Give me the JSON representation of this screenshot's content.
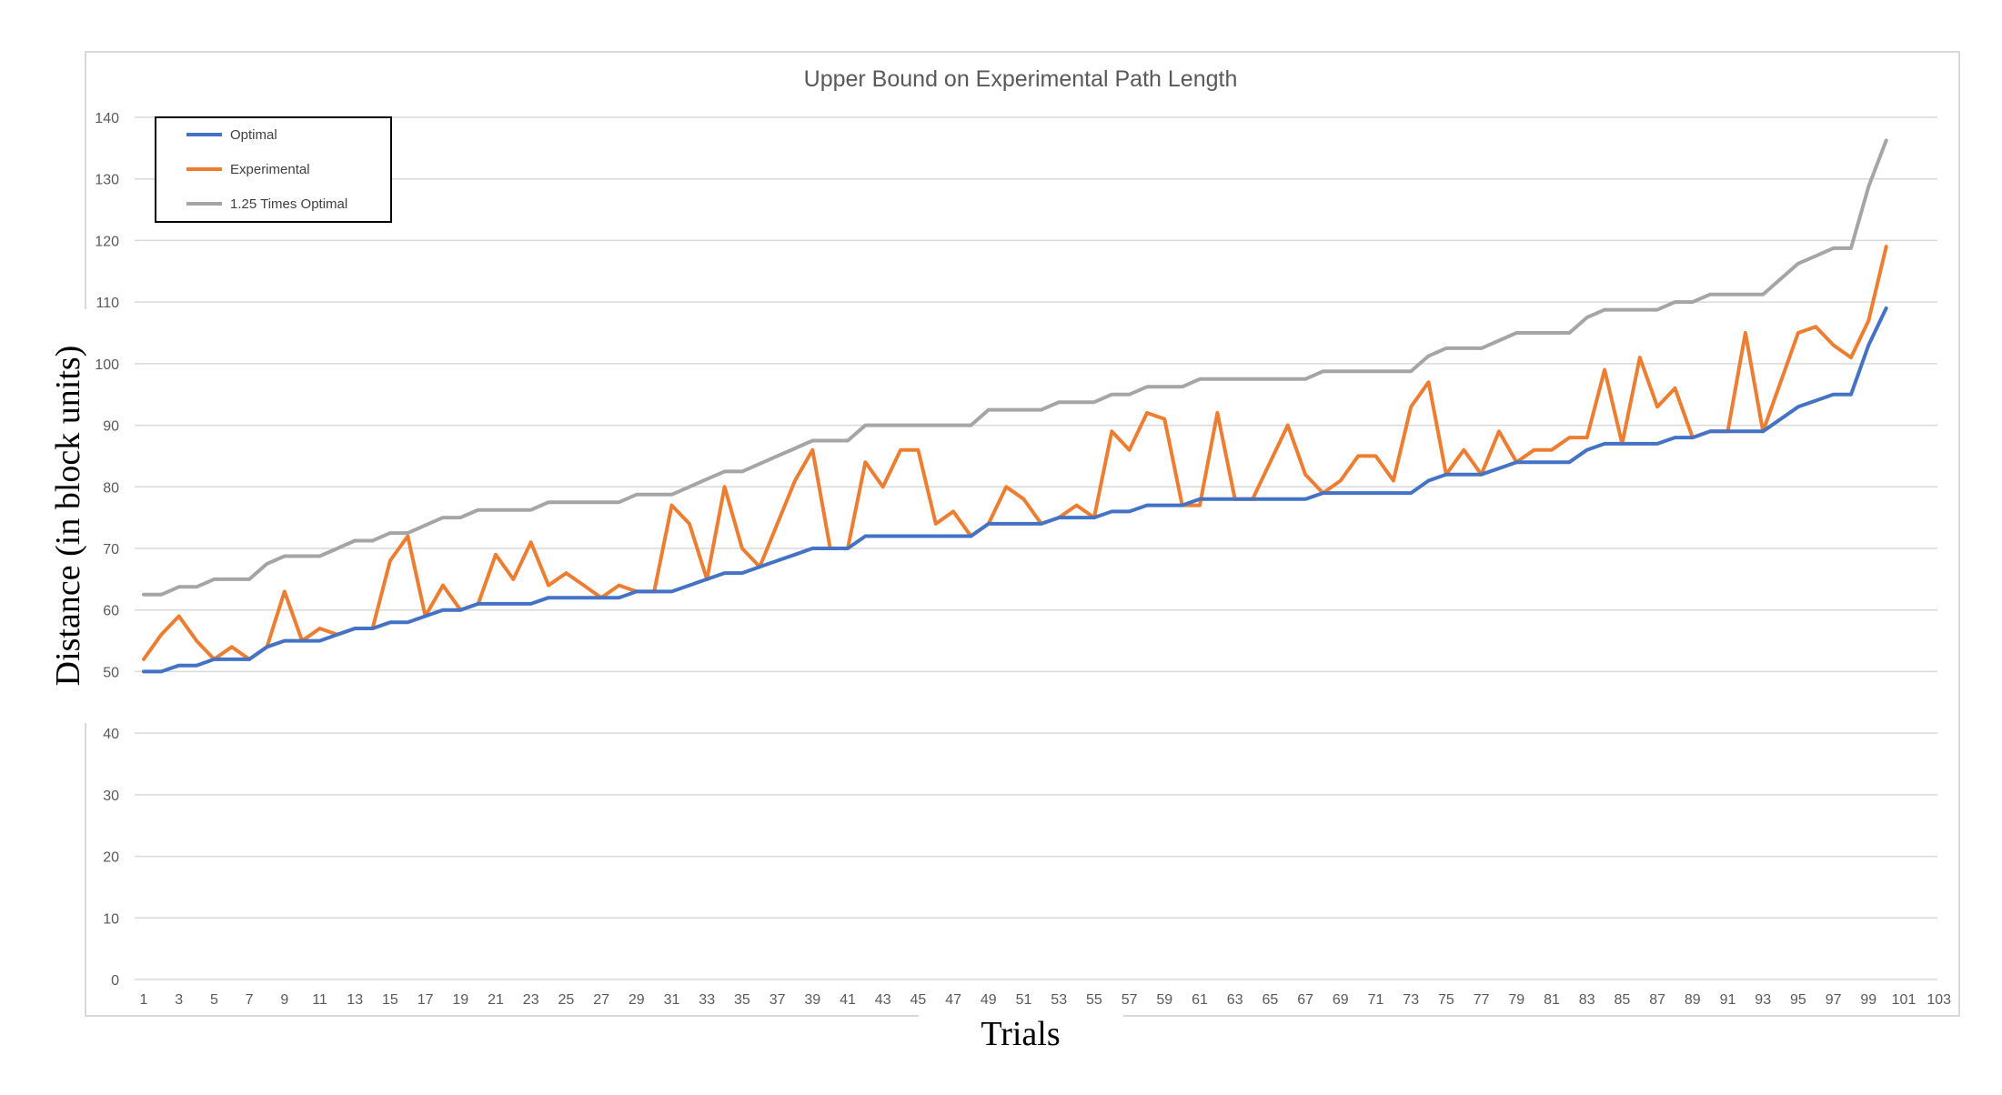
{
  "chart_data": {
    "type": "line",
    "title": "Upper Bound on Experimental Path Length",
    "xlabel": "Trials",
    "ylabel": "Distance (in block units)",
    "ylim": [
      0,
      140
    ],
    "yticks": [
      0,
      10,
      20,
      30,
      40,
      50,
      60,
      70,
      80,
      90,
      100,
      110,
      120,
      130,
      140
    ],
    "xlim": [
      1,
      103
    ],
    "xticks": [
      1,
      3,
      5,
      7,
      9,
      11,
      13,
      15,
      17,
      19,
      21,
      23,
      25,
      27,
      29,
      31,
      33,
      35,
      37,
      39,
      41,
      43,
      45,
      47,
      49,
      51,
      53,
      55,
      57,
      59,
      61,
      63,
      65,
      67,
      69,
      71,
      73,
      75,
      77,
      79,
      81,
      83,
      85,
      87,
      89,
      91,
      93,
      95,
      97,
      99,
      101,
      103
    ],
    "grid": "horizontal",
    "legend_position": "top-left",
    "x": [
      1,
      2,
      3,
      4,
      5,
      6,
      7,
      8,
      9,
      10,
      11,
      12,
      13,
      14,
      15,
      16,
      17,
      18,
      19,
      20,
      21,
      22,
      23,
      24,
      25,
      26,
      27,
      28,
      29,
      30,
      31,
      32,
      33,
      34,
      35,
      36,
      37,
      38,
      39,
      40,
      41,
      42,
      43,
      44,
      45,
      46,
      47,
      48,
      49,
      50,
      51,
      52,
      53,
      54,
      55,
      56,
      57,
      58,
      59,
      60,
      61,
      62,
      63,
      64,
      65,
      66,
      67,
      68,
      69,
      70,
      71,
      72,
      73,
      74,
      75,
      76,
      77,
      78,
      79,
      80,
      81,
      82,
      83,
      84,
      85,
      86,
      87,
      88,
      89,
      90,
      91,
      92,
      93,
      94,
      95,
      96,
      97,
      98,
      99,
      100
    ],
    "series": [
      {
        "name": "Optimal",
        "color": "#4472C4",
        "values": [
          50,
          50,
          51,
          51,
          52,
          52,
          52,
          54,
          55,
          55,
          55,
          56,
          57,
          57,
          58,
          58,
          59,
          60,
          60,
          61,
          61,
          61,
          61,
          62,
          62,
          62,
          62,
          62,
          63,
          63,
          63,
          64,
          65,
          66,
          66,
          67,
          68,
          69,
          70,
          70,
          70,
          72,
          72,
          72,
          72,
          72,
          72,
          72,
          74,
          74,
          74,
          74,
          75,
          75,
          75,
          76,
          76,
          77,
          77,
          77,
          78,
          78,
          78,
          78,
          78,
          78,
          78,
          79,
          79,
          79,
          79,
          79,
          79,
          81,
          82,
          82,
          82,
          83,
          84,
          84,
          84,
          84,
          86,
          87,
          87,
          87,
          87,
          88,
          88,
          89,
          89,
          89,
          89,
          91,
          93,
          94,
          95,
          95,
          103,
          109
        ]
      },
      {
        "name": "Experimental",
        "color": "#ED7D31",
        "values": [
          52,
          56,
          59,
          55,
          52,
          54,
          52,
          54,
          63,
          55,
          57,
          56,
          57,
          57,
          68,
          72,
          59,
          64,
          60,
          61,
          69,
          65,
          71,
          64,
          66,
          64,
          62,
          64,
          63,
          63,
          77,
          74,
          65,
          80,
          70,
          67,
          74,
          81,
          86,
          70,
          70,
          84,
          80,
          86,
          86,
          74,
          76,
          72,
          74,
          80,
          78,
          74,
          75,
          77,
          75,
          89,
          86,
          92,
          91,
          77,
          77,
          92,
          78,
          78,
          84,
          90,
          82,
          79,
          81,
          85,
          85,
          81,
          93,
          97,
          82,
          86,
          82,
          89,
          84,
          86,
          86,
          88,
          88,
          99,
          87,
          101,
          93,
          96,
          88,
          89,
          89,
          105,
          89,
          97,
          105,
          106,
          103,
          101,
          107,
          119
        ]
      },
      {
        "name": "1.25 Times Optimal",
        "color": "#A5A5A5",
        "values": [
          62.5,
          62.5,
          63.75,
          63.75,
          65,
          65,
          65,
          67.5,
          68.75,
          68.75,
          68.75,
          70,
          71.25,
          71.25,
          72.5,
          72.5,
          73.75,
          75,
          75,
          76.25,
          76.25,
          76.25,
          76.25,
          77.5,
          77.5,
          77.5,
          77.5,
          77.5,
          78.75,
          78.75,
          78.75,
          80,
          81.25,
          82.5,
          82.5,
          83.75,
          85,
          86.25,
          87.5,
          87.5,
          87.5,
          90,
          90,
          90,
          90,
          90,
          90,
          90,
          92.5,
          92.5,
          92.5,
          92.5,
          93.75,
          93.75,
          93.75,
          95,
          95,
          96.25,
          96.25,
          96.25,
          97.5,
          97.5,
          97.5,
          97.5,
          97.5,
          97.5,
          97.5,
          98.75,
          98.75,
          98.75,
          98.75,
          98.75,
          98.75,
          101.25,
          102.5,
          102.5,
          102.5,
          103.75,
          105,
          105,
          105,
          105,
          107.5,
          108.75,
          108.75,
          108.75,
          108.75,
          110,
          110,
          111.25,
          111.25,
          111.25,
          111.25,
          113.75,
          116.25,
          117.5,
          118.75,
          118.75,
          128.75,
          136.25
        ]
      }
    ]
  }
}
